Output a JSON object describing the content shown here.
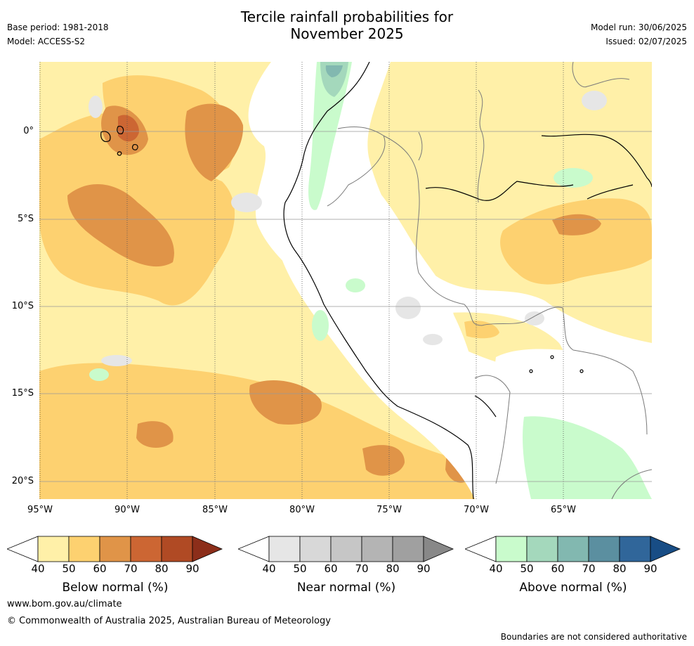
{
  "title_line1": "Tercile rainfall probabilities for",
  "title_line2": "November 2025",
  "meta_left": {
    "base_period": "Base period: 1981-2018",
    "model": "Model: ACCESS-S2"
  },
  "meta_right": {
    "model_run": "Model run: 30/06/2025",
    "issued": "Issued: 02/07/2025"
  },
  "map": {
    "lat_labels": [
      "0°",
      "5°S",
      "10°S",
      "15°S",
      "20°S"
    ],
    "lon_labels": [
      "95°W",
      "90°W",
      "85°W",
      "80°W",
      "75°W",
      "70°W",
      "65°W"
    ]
  },
  "colorbars": [
    {
      "title": "Below normal (%)",
      "labels": [
        "40",
        "50",
        "60",
        "70",
        "80",
        "90"
      ],
      "colors": [
        "#fff0a8",
        "#fdd170",
        "#e09448",
        "#cc6633",
        "#b04a24",
        "#8c2e1a"
      ]
    },
    {
      "title": "Near normal (%)",
      "labels": [
        "40",
        "50",
        "60",
        "70",
        "80",
        "90"
      ],
      "colors": [
        "#e6e6e6",
        "#d8d8d8",
        "#c6c6c6",
        "#b4b4b4",
        "#a0a0a0",
        "#888888"
      ]
    },
    {
      "title": "Above normal (%)",
      "labels": [
        "40",
        "50",
        "60",
        "70",
        "80",
        "90"
      ],
      "colors": [
        "#c9fbcc",
        "#a4d8bc",
        "#82b8b0",
        "#5b8fa0",
        "#30669a",
        "#184d85"
      ]
    }
  ],
  "footer": {
    "website": "www.bom.gov.au/climate",
    "copyright": "© Commonwealth of Australia 2025, Australian Bureau of Meteorology",
    "disclaimer": "Boundaries are not considered authoritative"
  }
}
